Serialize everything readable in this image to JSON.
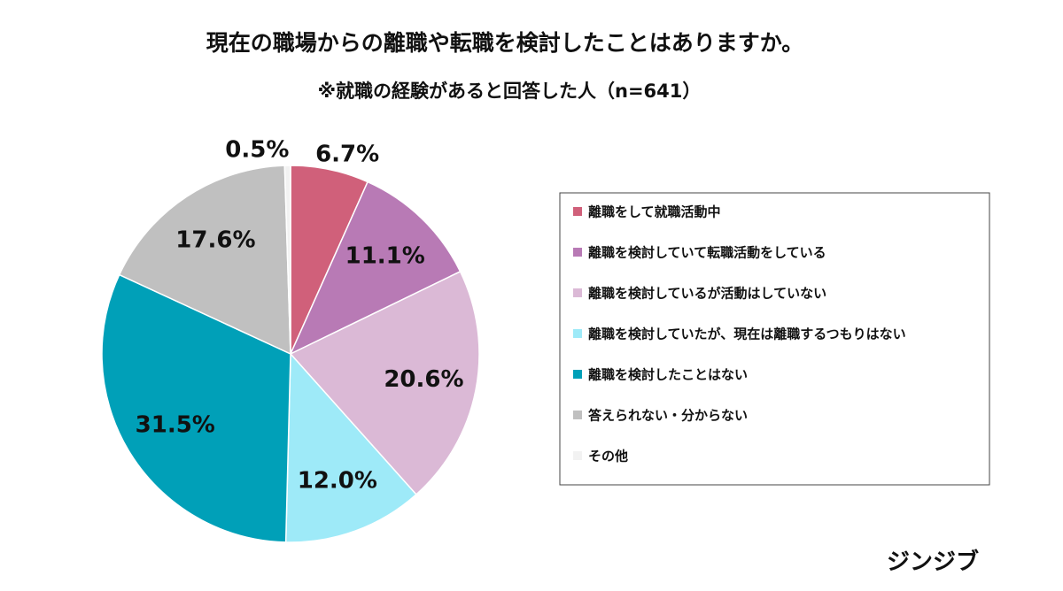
{
  "chart_data": {
    "type": "pie",
    "title": "現在の職場からの離職や転職を検討したことはありますか。",
    "subtitle": "※就職の経験があると回答した人（n=641）",
    "categories": [
      "離職をして就職活動中",
      "離職を検討していて転職活動をしている",
      "離職を検討しているが活動はしていない",
      "離職を検討していたが、現在は離職するつもりはない",
      "離職を検討したことはない",
      "答えられない・分からない",
      "その他"
    ],
    "values": [
      6.7,
      11.1,
      20.6,
      12.0,
      31.5,
      17.6,
      0.5
    ],
    "value_labels": [
      "6.7%",
      "11.1%",
      "20.6%",
      "12.0%",
      "31.5%",
      "17.6%",
      "0.5%"
    ],
    "colors": [
      "#d0607a",
      "#b87ab5",
      "#dbb9d6",
      "#9eeaf8",
      "#00a0b8",
      "#c0c0c0",
      "#f2f2f2"
    ],
    "legend": "right"
  },
  "footer": "ジンジブ"
}
